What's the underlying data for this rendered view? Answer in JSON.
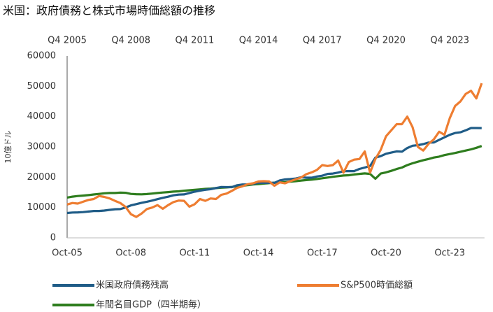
{
  "chart_data": {
    "type": "line",
    "title": "米国：政府債務と株式市場時価総額の推移",
    "y_label": "10億ドル",
    "categories": [
      "Oct-05",
      null,
      null,
      null,
      null,
      null,
      null,
      null,
      null,
      null,
      null,
      null,
      "Oct-08",
      null,
      null,
      null,
      null,
      null,
      null,
      null,
      null,
      null,
      null,
      null,
      "Oct-11",
      null,
      null,
      null,
      null,
      null,
      null,
      null,
      null,
      null,
      null,
      null,
      "Oct-14",
      null,
      null,
      null,
      null,
      null,
      null,
      null,
      null,
      null,
      null,
      null,
      "Oct-17",
      null,
      null,
      null,
      null,
      null,
      null,
      null,
      null,
      null,
      null,
      null,
      "Oct-20",
      null,
      null,
      null,
      null,
      null,
      null,
      null,
      null,
      null,
      null,
      null,
      "Oct-23",
      null,
      null,
      null,
      null,
      null,
      null
    ],
    "top_categories": [
      "Q4 2005",
      null,
      null,
      null,
      null,
      null,
      null,
      null,
      null,
      null,
      null,
      null,
      "Q4 2008",
      null,
      null,
      null,
      null,
      null,
      null,
      null,
      null,
      null,
      null,
      null,
      "Q4 2011",
      null,
      null,
      null,
      null,
      null,
      null,
      null,
      null,
      null,
      null,
      null,
      "Q4 2014",
      null,
      null,
      null,
      null,
      null,
      null,
      null,
      null,
      null,
      null,
      null,
      "Q4 2017",
      null,
      null,
      null,
      null,
      null,
      null,
      null,
      null,
      null,
      null,
      null,
      "Q4 2020",
      null,
      null,
      null,
      null,
      null,
      null,
      null,
      null,
      null,
      null,
      null,
      "Q4 2023",
      null,
      null,
      null,
      null,
      null,
      null
    ],
    "ylim": [
      0,
      60000
    ],
    "yticks": [
      0,
      10000,
      20000,
      30000,
      40000,
      50000,
      60000
    ],
    "grid": false,
    "series": [
      {
        "name": "年間名目GDP（四半期毎）",
        "color": "#2e7d1e",
        "values": [
          13300,
          13600,
          13800,
          13950,
          14100,
          14300,
          14500,
          14700,
          14800,
          14800,
          14900,
          14850,
          14500,
          14400,
          14350,
          14450,
          14600,
          14800,
          14950,
          15100,
          15250,
          15350,
          15550,
          15700,
          15850,
          16000,
          16150,
          16250,
          16400,
          16550,
          16650,
          16800,
          17000,
          17150,
          17400,
          17600,
          17750,
          17900,
          18050,
          18200,
          18300,
          18400,
          18550,
          18700,
          18900,
          19050,
          19200,
          19400,
          19650,
          19900,
          20150,
          20350,
          20550,
          20650,
          20900,
          21100,
          21250,
          21100,
          19500,
          21200,
          21600,
          22100,
          22700,
          23200,
          24000,
          24600,
          25100,
          25600,
          26000,
          26500,
          26800,
          27300,
          27650,
          28000,
          28400,
          28800,
          29200,
          29700,
          30300
        ]
      },
      {
        "name": "米国政府債務残高",
        "color": "#1f5c87",
        "values": [
          8200,
          8350,
          8400,
          8500,
          8680,
          8850,
          8870,
          9000,
          9230,
          9440,
          9490,
          10020,
          10700,
          11130,
          11550,
          11910,
          12310,
          12770,
          13200,
          13560,
          14030,
          14270,
          14340,
          14790,
          15220,
          15580,
          15860,
          16070,
          16430,
          16770,
          16740,
          16740,
          17350,
          17600,
          17630,
          17820,
          18140,
          18150,
          18150,
          18150,
          18920,
          19260,
          19380,
          19570,
          19980,
          19850,
          19840,
          20240,
          20490,
          21090,
          21200,
          21520,
          21970,
          22030,
          22020,
          22720,
          23200,
          23690,
          26480,
          26950,
          27750,
          28130,
          28530,
          28430,
          29620,
          30400,
          30570,
          30930,
          31420,
          31460,
          32330,
          33170,
          34000,
          34590,
          34830,
          35460,
          36220,
          36220,
          36210
        ]
      },
      {
        "name": "S&P500時価総額",
        "color": "#ee7d31",
        "values": [
          11000,
          11500,
          11300,
          11900,
          12500,
          12800,
          13800,
          13500,
          13000,
          12200,
          11500,
          10200,
          7800,
          6900,
          8000,
          9500,
          10000,
          10800,
          9600,
          10800,
          11800,
          12300,
          12200,
          10300,
          11100,
          12800,
          12200,
          13000,
          12800,
          14200,
          14600,
          15500,
          16500,
          17000,
          17700,
          18000,
          18600,
          18700,
          18600,
          17200,
          18300,
          18000,
          18700,
          19300,
          19900,
          21000,
          21600,
          22400,
          24000,
          23700,
          24000,
          25500,
          21500,
          25000,
          25800,
          26000,
          28500,
          21500,
          26000,
          29000,
          33500,
          35500,
          37500,
          37500,
          40000,
          36500,
          30000,
          28800,
          31000,
          32500,
          35000,
          34000,
          39500,
          43500,
          45000,
          47500,
          48500,
          46000,
          51000
        ]
      }
    ]
  }
}
